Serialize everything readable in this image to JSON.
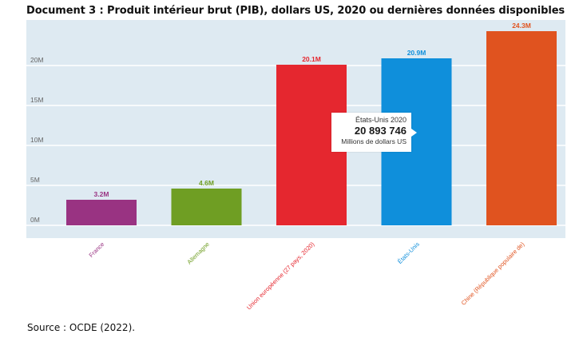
{
  "document": {
    "title": "Document 3 : Produit intérieur brut (PIB), dollars US, 2020 ou dernières données disponibles",
    "source": "Source : OCDE (2022)."
  },
  "chart_data": {
    "type": "bar",
    "title": "Produit intérieur brut (PIB), dollars US, 2020 ou dernières données disponibles",
    "xlabel": "",
    "ylabel": "",
    "ylim": [
      0,
      25
    ],
    "unit": "Millions de dollars US",
    "grid": true,
    "yticks": [
      {
        "value": 0,
        "label": "0M"
      },
      {
        "value": 5,
        "label": "5M"
      },
      {
        "value": 10,
        "label": "10M"
      },
      {
        "value": 15,
        "label": "15M"
      },
      {
        "value": 20,
        "label": "20M"
      }
    ],
    "categories": [
      "France",
      "Allemagne",
      "Union européenne (27 pays, 2020)",
      "États-Unis",
      "Chine (République populaire de)"
    ],
    "values": [
      3.2,
      4.6,
      20.1,
      20.9,
      24.3
    ],
    "value_labels": [
      "3.2M",
      "4.6M",
      "20.1M",
      "20.9M",
      "24.3M"
    ],
    "colors": [
      "#993382",
      "#6f9e23",
      "#e5272f",
      "#0f8fdb",
      "#e0531f"
    ],
    "background_color": "#deeaf2",
    "gridline_color": "#ffffff",
    "tooltip": {
      "category_index": 3,
      "title": "États-Unis 2020",
      "value": "20 893 746",
      "unit": "Millions de dollars US"
    }
  }
}
